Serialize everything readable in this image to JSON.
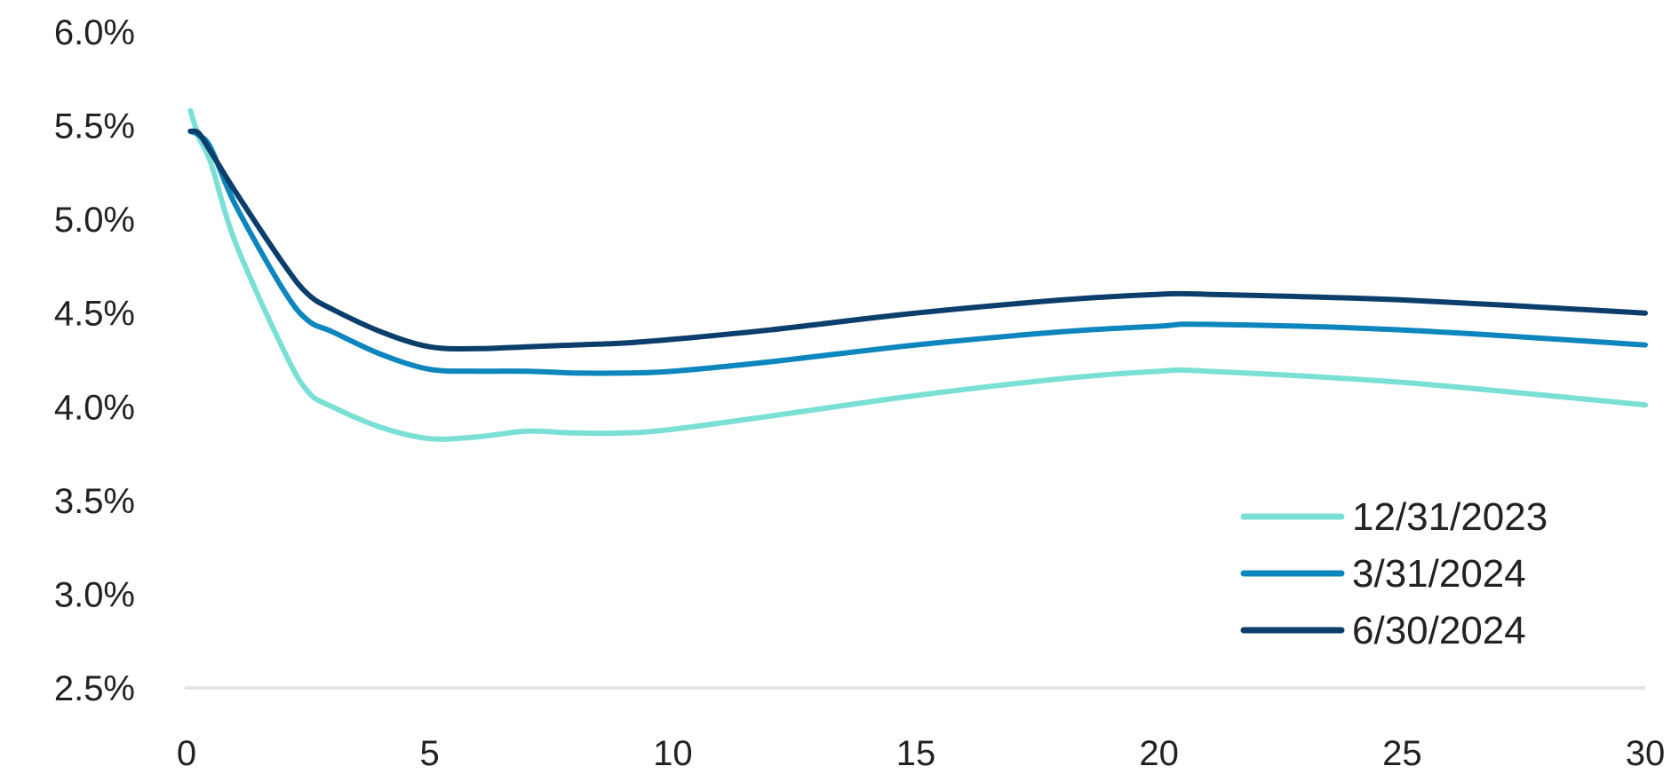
{
  "chart_data": {
    "type": "line",
    "title": "",
    "xlabel": "",
    "ylabel": "",
    "x_ticks": [
      "0",
      "5",
      "10",
      "15",
      "20",
      "25",
      "30"
    ],
    "y_ticks": [
      "2.5%",
      "3.0%",
      "3.5%",
      "4.0%",
      "4.5%",
      "5.0%",
      "5.5%",
      "6.0%"
    ],
    "xlim": [
      0,
      30
    ],
    "ylim": [
      2.5,
      6.0
    ],
    "grid": false,
    "legend_position": "bottom-right",
    "series": [
      {
        "name": "12/31/2023",
        "color": "#7ae0d6",
        "points": [
          [
            0.08,
            5.58
          ],
          [
            0.25,
            5.44
          ],
          [
            0.5,
            5.3
          ],
          [
            1,
            4.88
          ],
          [
            2,
            4.3
          ],
          [
            2.5,
            4.08
          ],
          [
            3,
            4.0
          ],
          [
            4,
            3.89
          ],
          [
            5,
            3.83
          ],
          [
            6,
            3.84
          ],
          [
            7,
            3.87
          ],
          [
            8,
            3.86
          ],
          [
            9,
            3.86
          ],
          [
            10,
            3.88
          ],
          [
            12,
            3.95
          ],
          [
            15,
            4.06
          ],
          [
            18,
            4.15
          ],
          [
            20,
            4.19
          ],
          [
            21,
            4.19
          ],
          [
            25,
            4.13
          ],
          [
            30,
            4.01
          ]
        ]
      },
      {
        "name": "3/31/2024",
        "color": "#0d85bd",
        "points": [
          [
            0.08,
            5.47
          ],
          [
            0.25,
            5.45
          ],
          [
            0.5,
            5.38
          ],
          [
            1,
            5.08
          ],
          [
            2,
            4.62
          ],
          [
            2.5,
            4.46
          ],
          [
            3,
            4.4
          ],
          [
            4,
            4.28
          ],
          [
            5,
            4.2
          ],
          [
            6,
            4.19
          ],
          [
            7,
            4.19
          ],
          [
            8,
            4.18
          ],
          [
            9,
            4.18
          ],
          [
            10,
            4.19
          ],
          [
            12,
            4.24
          ],
          [
            15,
            4.33
          ],
          [
            18,
            4.4
          ],
          [
            20,
            4.43
          ],
          [
            21,
            4.44
          ],
          [
            25,
            4.41
          ],
          [
            30,
            4.33
          ]
        ]
      },
      {
        "name": "6/30/2024",
        "color": "#0c3e6c",
        "points": [
          [
            0.08,
            5.47
          ],
          [
            0.25,
            5.46
          ],
          [
            0.5,
            5.36
          ],
          [
            1,
            5.15
          ],
          [
            2,
            4.76
          ],
          [
            2.5,
            4.6
          ],
          [
            3,
            4.52
          ],
          [
            4,
            4.4
          ],
          [
            5,
            4.32
          ],
          [
            6,
            4.31
          ],
          [
            7,
            4.32
          ],
          [
            8,
            4.33
          ],
          [
            9,
            4.34
          ],
          [
            10,
            4.36
          ],
          [
            12,
            4.41
          ],
          [
            15,
            4.5
          ],
          [
            18,
            4.57
          ],
          [
            20,
            4.6
          ],
          [
            21,
            4.6
          ],
          [
            25,
            4.57
          ],
          [
            30,
            4.5
          ]
        ]
      }
    ]
  }
}
